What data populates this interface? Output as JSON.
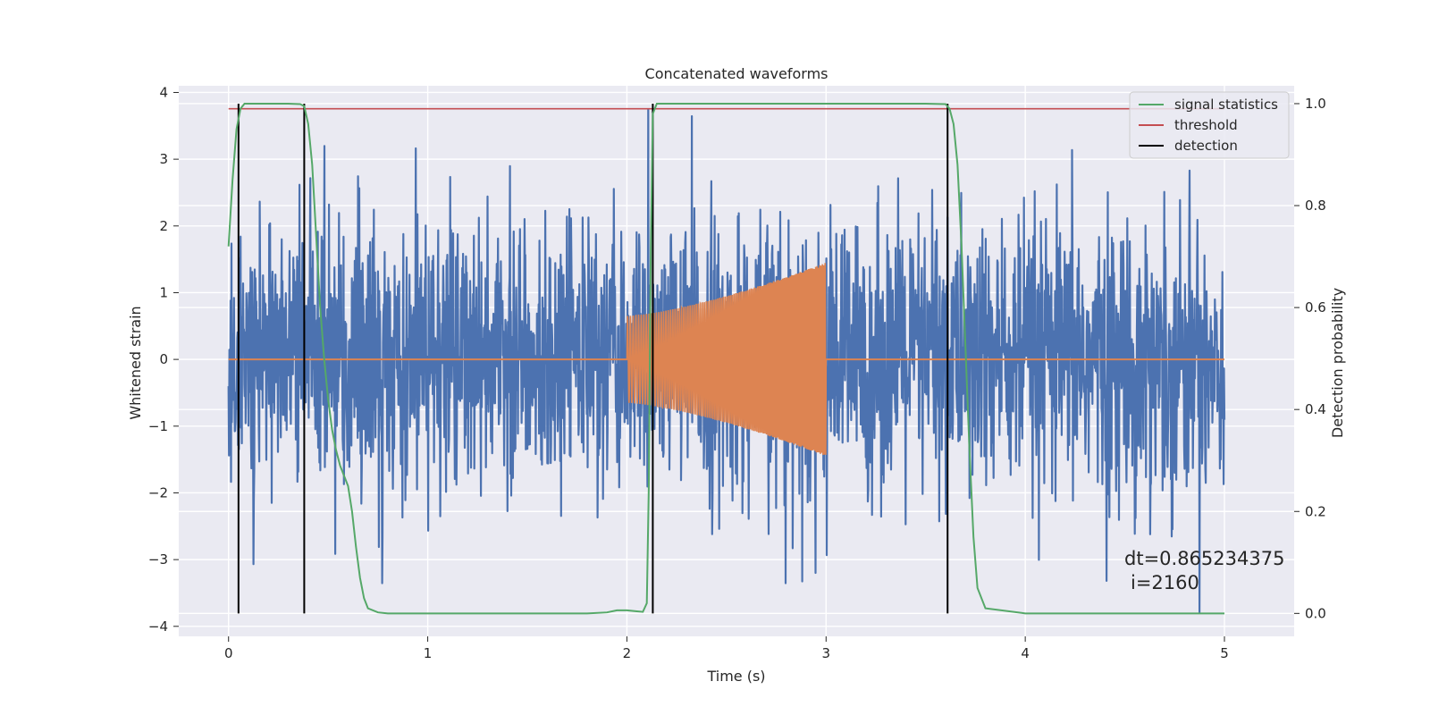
{
  "chart_data": {
    "type": "line",
    "title": "Concatenated waveforms",
    "xlabel": "Time (s)",
    "ylabel_left": "Whitened strain",
    "ylabel_right": "Detection probability",
    "xlim": [
      -0.25,
      5.35
    ],
    "ylim_left": [
      -4.15,
      4.1
    ],
    "ylim_right": [
      -0.045,
      1.035
    ],
    "x_ticks": [
      0,
      1,
      2,
      3,
      4,
      5
    ],
    "y_ticks_left": [
      -4,
      -3,
      -2,
      -1,
      0,
      1,
      2,
      3,
      4
    ],
    "y_ticks_right": [
      0.0,
      0.2,
      0.4,
      0.6,
      0.8,
      1.0
    ],
    "x_tick_labels": [
      "0",
      "1",
      "2",
      "3",
      "4",
      "5"
    ],
    "y_tick_labels_left": [
      "−4",
      "−3",
      "−2",
      "−1",
      "0",
      "1",
      "2",
      "3",
      "4"
    ],
    "y_tick_labels_right": [
      "0.0",
      "0.2",
      "0.4",
      "0.6",
      "0.8",
      "1.0"
    ],
    "grid": true,
    "legend_position": "top-right",
    "colors": {
      "strain": "#4c72b0",
      "injection": "#dd8452",
      "signal_statistics": "#55a868",
      "threshold": "#c44e52",
      "detection": "#000000",
      "background": "#eaeaf2",
      "grid": "#ffffff"
    },
    "series": [
      {
        "name": "signal statistics",
        "axis": "right",
        "x": [
          0.0,
          0.02,
          0.04,
          0.06,
          0.08,
          0.1,
          0.2,
          0.3,
          0.36,
          0.38,
          0.4,
          0.42,
          0.44,
          0.46,
          0.48,
          0.5,
          0.52,
          0.54,
          0.56,
          0.58,
          0.6,
          0.62,
          0.64,
          0.66,
          0.68,
          0.7,
          0.75,
          0.8,
          1.0,
          1.5,
          1.8,
          1.9,
          1.95,
          2.0,
          2.05,
          2.08,
          2.1,
          2.11,
          2.12,
          2.13,
          2.15,
          2.2,
          2.5,
          3.0,
          3.5,
          3.6,
          3.62,
          3.64,
          3.66,
          3.68,
          3.7,
          3.72,
          3.74,
          3.76,
          3.8,
          4.0,
          4.5,
          5.0
        ],
        "y": [
          0.72,
          0.85,
          0.95,
          0.99,
          1.0,
          1.0,
          1.0,
          1.0,
          0.999,
          0.995,
          0.96,
          0.88,
          0.74,
          0.6,
          0.5,
          0.42,
          0.36,
          0.32,
          0.29,
          0.27,
          0.25,
          0.2,
          0.13,
          0.07,
          0.03,
          0.01,
          0.002,
          0.0,
          0.0,
          0.0,
          0.0,
          0.002,
          0.006,
          0.006,
          0.004,
          0.003,
          0.02,
          0.25,
          0.72,
          0.98,
          1.0,
          1.0,
          1.0,
          1.0,
          1.0,
          0.999,
          0.99,
          0.96,
          0.88,
          0.72,
          0.52,
          0.32,
          0.15,
          0.05,
          0.01,
          0.0,
          0.0,
          0.0
        ]
      },
      {
        "name": "threshold",
        "axis": "right",
        "x": [
          0.0,
          5.0
        ],
        "y": [
          0.99,
          0.99
        ]
      },
      {
        "name": "detection",
        "axis": "right",
        "x": [
          0.05,
          0.38,
          2.13,
          3.61
        ],
        "y_range": [
          0.0,
          1.0
        ]
      }
    ],
    "strain_noise": {
      "axis": "left",
      "x_range": [
        0.0,
        5.0
      ],
      "typical_peak": [
        -2.5,
        2.5
      ],
      "max_spike": 3.75,
      "min_spike": -3.8
    },
    "injection_chirp": {
      "axis": "left",
      "x_range": [
        2.0,
        3.0
      ],
      "amplitude_start": 0.65,
      "amplitude_end": 1.45,
      "baseline_x_range": [
        0.0,
        5.0
      ],
      "baseline_y": 0.0
    },
    "annotations": [
      "dt=0.865234375",
      "i=2160"
    ]
  }
}
